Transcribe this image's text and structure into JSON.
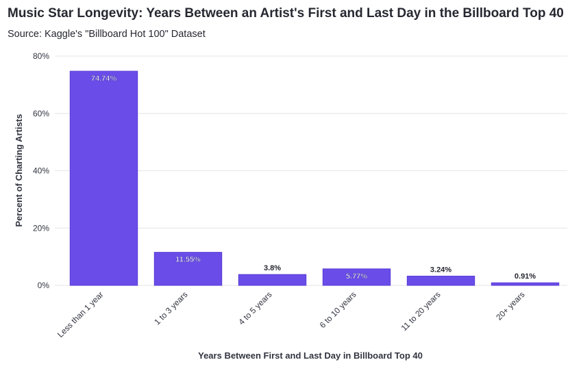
{
  "header": {
    "title": "Music Star Longevity: Years Between an Artist's First and Last Day in the Billboard Top 40",
    "subtitle": "Source: Kaggle's \"Billboard Hot 100\" Dataset"
  },
  "chart_data": {
    "type": "bar",
    "categories": [
      "Less than 1 year",
      "1 to 3 years",
      "4 to 5 years",
      "6 to 10 years",
      "11 to 20 years",
      "20+ years"
    ],
    "values": [
      74.74,
      11.55,
      3.8,
      5.77,
      3.24,
      0.91
    ],
    "data_labels": [
      "74.74%",
      "11.55%",
      "3.8%",
      "5.77%",
      "3.24%",
      "0.91%"
    ],
    "xlabel": "Years Between First and Last Day in Billboard Top 40",
    "ylabel": "Percent of Charting Artists",
    "ylim": [
      0,
      80
    ],
    "yticks": [
      0,
      20,
      40,
      60,
      80
    ],
    "ytick_labels": [
      "0%",
      "20%",
      "40%",
      "60%",
      "80%"
    ],
    "grid": true,
    "colors": {
      "bar": "#6a4de8",
      "bar_border": "#5a3ad6",
      "grid": "#e6e6e6"
    }
  }
}
